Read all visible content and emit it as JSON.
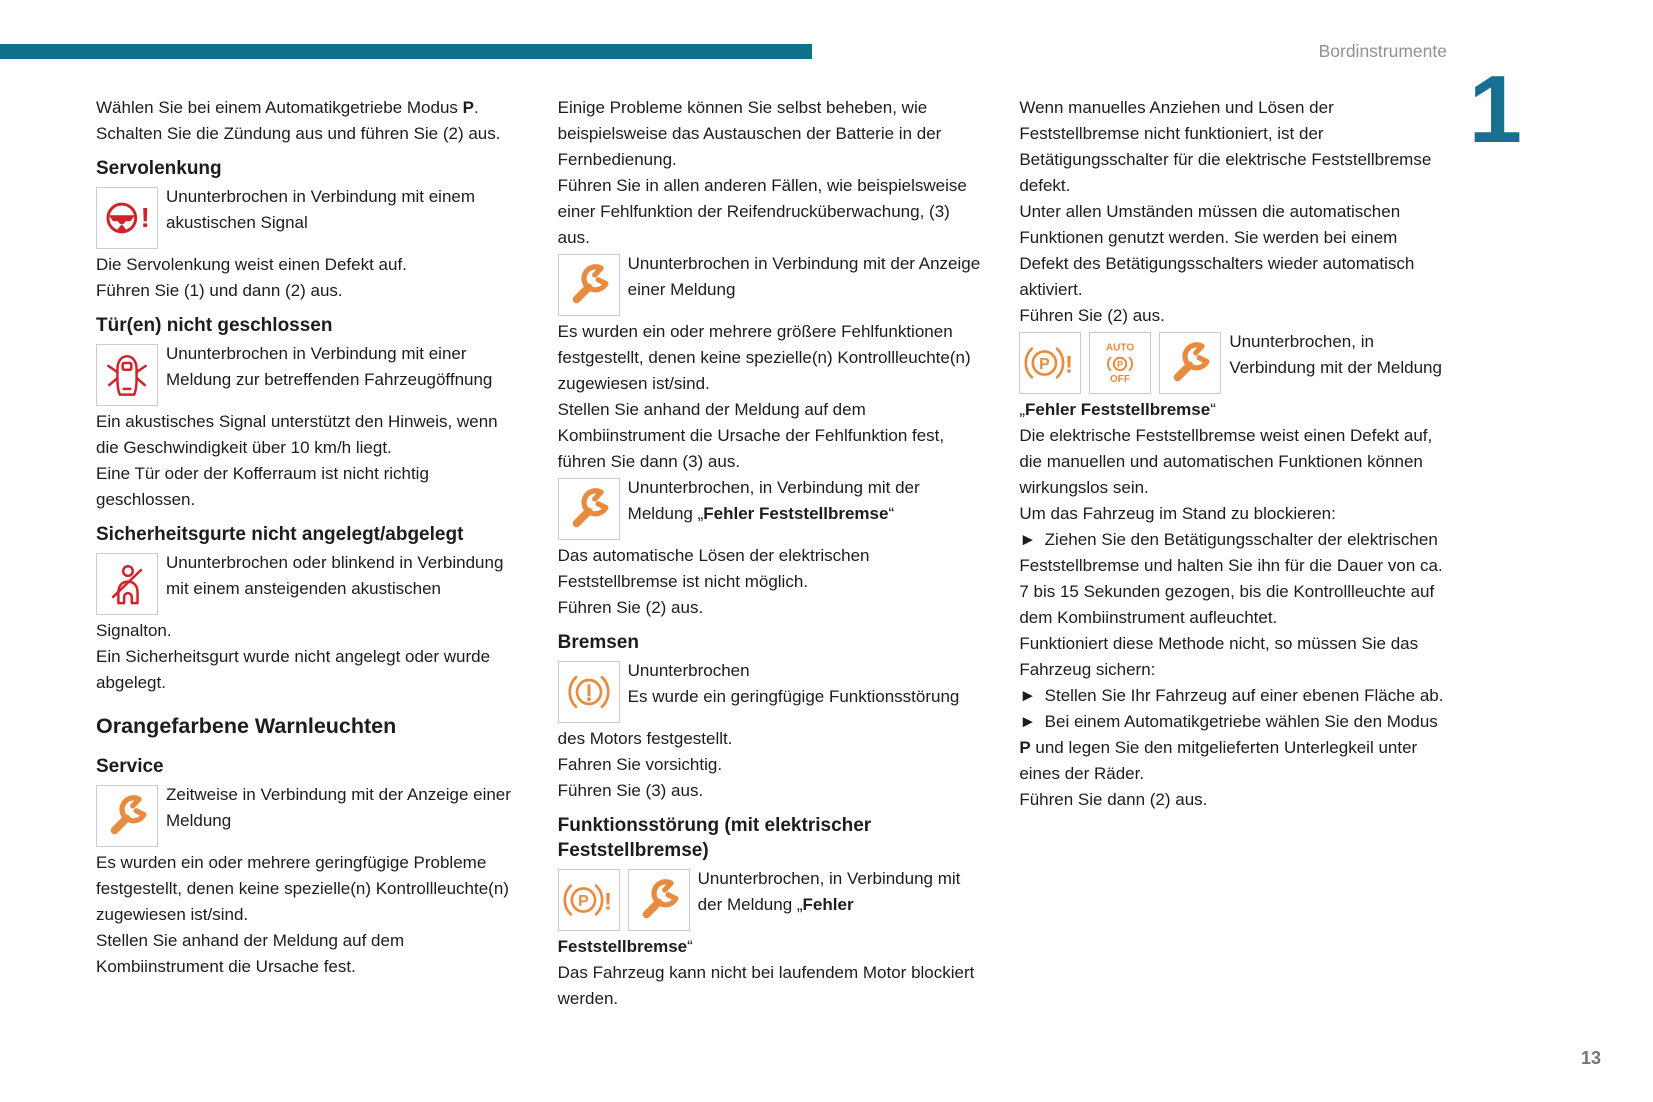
{
  "header": {
    "title": "Bordinstrumente",
    "chapter_number": "1"
  },
  "footer": {
    "page_number": "13"
  },
  "colors": {
    "accent_teal": "#0e7189",
    "chapter_teal": "#17708f",
    "warning_red": "#d02328",
    "warning_orange": "#e78b3f",
    "header_gray": "#919191"
  },
  "icons": {
    "power_steering": "steering-wheel-warning-icon",
    "door_open": "door-open-warning-icon",
    "seatbelt": "seatbelt-warning-icon",
    "service_wrench": "wrench-service-icon",
    "brake_warning": "brake-warning-icon",
    "parking_brake_warning": "parking-brake-warning-icon",
    "auto_parking_off": "auto-parking-brake-off-icon",
    "exclamation": "!",
    "p_letter": "P",
    "auto_top": "AUTO",
    "auto_bottom": "OFF"
  },
  "col1": {
    "intro": [
      {
        "t": "Wählen Sie bei einem Automatikgetriebe Modus "
      },
      {
        "t": "P",
        "b": true
      },
      {
        "t": ". Schalten Sie die Zündung aus und führen Sie (2) aus."
      }
    ],
    "h_servo": "Servolenkung",
    "servo_icon_text": "Ununterbrochen in Verbindung mit einem akustischen Signal",
    "p_servo1": "Die Servolenkung weist einen Defekt auf.",
    "p_servo2": "Führen Sie (1) und dann (2) aus.",
    "h_tuer": "Tür(en) nicht geschlossen",
    "tuer_icon_text": "Ununterbrochen in Verbindung mit einer Meldung zur betreffenden Fahrzeugöffnung",
    "p_tuer1": "Ein akustisches Signal unterstützt den Hinweis, wenn die Geschwindigkeit über 10 km/h liegt.",
    "p_tuer2": "Eine Tür oder der Kofferraum ist nicht richtig geschlossen.",
    "h_gurt": "Sicherheitsgurte nicht angelegt/abgelegt",
    "gurt_icon_text_beside": "Ununterbrochen oder blinkend in Verbindung mit einem ansteigenden akustischen",
    "gurt_icon_text_below": "Signalton.",
    "p_gurt1": "Ein Sicherheitsgurt wurde nicht angelegt oder wurde abgelegt.",
    "h_orange": "Orangefarbene Warnleuchten",
    "h_service": "Service",
    "service_icon_text": "Zeitweise in Verbindung mit der Anzeige einer Meldung",
    "p_service1": "Es wurden ein oder mehrere geringfügige Probleme festgestellt, denen keine spezielle(n) Kontrollleuchte(n) zugewiesen ist/sind.",
    "p_service2": "Stellen Sie anhand der Meldung auf dem Kombiinstrument die Ursache fest."
  },
  "col2": {
    "p1": "Einige Probleme können Sie selbst beheben, wie beispielsweise das Austauschen der Batterie in der Fernbedienung.",
    "p2": "Führen Sie in allen anderen Fällen, wie beispielsweise einer Fehlfunktion der Reifendrucküberwachung, (3) aus.",
    "wrench1_text": "Ununterbrochen in Verbindung mit der Anzeige einer Meldung",
    "p3": "Es wurden ein oder mehrere größere Fehlfunktionen festgestellt, denen keine spezielle(n) Kontrollleuchte(n) zugewiesen ist/sind.",
    "p4": "Stellen Sie anhand der Meldung auf dem Kombiinstrument die Ursache der Fehlfunktion fest, führen Sie dann (3) aus.",
    "wrench2_text": [
      {
        "t": "Ununterbrochen, in Verbindung mit der Meldung „"
      },
      {
        "t": "Fehler Feststellbremse",
        "b": true
      },
      {
        "t": "“"
      }
    ],
    "p5": "Das automatische Lösen der elektrischen Feststellbremse ist nicht möglich.",
    "p6": "Führen Sie (2) aus.",
    "h_bremsen": "Bremsen",
    "bremsen_line1": "Ununterbrochen",
    "bremsen_text_beside": "Es wurde ein geringfügige Funktionsstörung",
    "bremsen_text_below": "des Motors festgestellt.",
    "p7": "Fahren Sie vorsichtig.",
    "p8": "Führen Sie (3) aus.",
    "h_funk": "Funktionsstörung (mit elektrischer Feststellbremse)",
    "funk_icon_text": [
      {
        "t": "Ununterbrochen, in Verbindung mit der Meldung „"
      },
      {
        "t": "Fehler",
        "b": true
      }
    ],
    "funk_cont": [
      {
        "t": "Feststellbremse",
        "b": true
      },
      {
        "t": "“"
      }
    ],
    "p9": "Das Fahrzeug kann nicht bei laufendem Motor blockiert werden."
  },
  "col3": {
    "p1": "Wenn manuelles Anziehen und Lösen der Feststellbremse nicht funktioniert, ist der Betätigungsschalter für die elektrische Feststellbremse defekt.",
    "p2": "Unter allen Umständen müssen die automatischen Funktionen genutzt werden. Sie werden bei einem Defekt des Betätigungsschalters wieder automatisch aktiviert.",
    "p3": "Führen Sie (2) aus.",
    "icons_text": "Ununterbrochen, in Verbindung mit der Meldung",
    "fehler_line": [
      {
        "t": "„"
      },
      {
        "t": "Fehler Feststellbremse",
        "b": true
      },
      {
        "t": "“"
      }
    ],
    "p4": "Die elektrische Feststellbremse weist einen Defekt auf, die manuellen und automatischen Funktionen können wirkungslos sein.",
    "p5": "Um das Fahrzeug im Stand zu blockieren:",
    "b1": "► Ziehen Sie den Betätigungsschalter der elektrischen Feststellbremse und halten Sie ihn für die Dauer von ca. 7 bis 15 Sekunden gezogen, bis die Kontrollleuchte auf dem Kombiinstrument aufleuchtet.",
    "p6": "Funktioniert diese Methode nicht, so müssen Sie das Fahrzeug sichern:",
    "b2": "► Stellen Sie Ihr Fahrzeug auf einer ebenen Fläche ab.",
    "b3": [
      {
        "t": "► Bei einem Automatikgetriebe wählen Sie den Modus "
      },
      {
        "t": "P",
        "b": true
      },
      {
        "t": " und legen Sie den mitgelieferten Unterlegkeil unter eines der Räder."
      }
    ],
    "p7": "Führen Sie dann (2) aus."
  }
}
